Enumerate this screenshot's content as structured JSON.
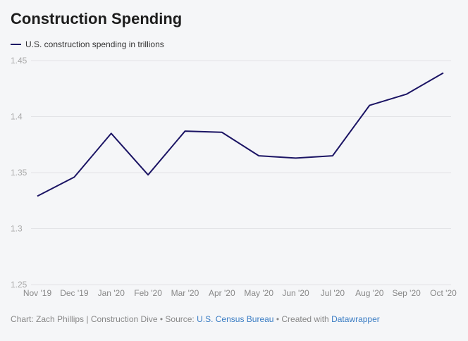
{
  "chart_data": {
    "type": "line",
    "title": "Construction Spending",
    "categories": [
      "Nov '19",
      "Dec '19",
      "Jan '20",
      "Feb '20",
      "Mar '20",
      "Apr '20",
      "May '20",
      "Jun '20",
      "Jul '20",
      "Aug '20",
      "Sep '20",
      "Oct '20"
    ],
    "series": [
      {
        "name": "U.S. construction spending in trillions",
        "values": [
          1.329,
          1.346,
          1.385,
          1.348,
          1.387,
          1.386,
          1.365,
          1.363,
          1.365,
          1.41,
          1.42,
          1.439
        ],
        "color": "#1b1464"
      }
    ],
    "yticks": [
      "1.45",
      "1.4",
      "1.35",
      "1.3",
      "1.25"
    ],
    "ylim": [
      1.25,
      1.45
    ],
    "grid": true,
    "legend": "top-left"
  },
  "footer": {
    "prefix": "Chart: Zach Phillips | Construction Dive • Source: ",
    "source_link": "U.S. Census Bureau",
    "middle": " • Created with ",
    "tool_link": "Datawrapper"
  }
}
